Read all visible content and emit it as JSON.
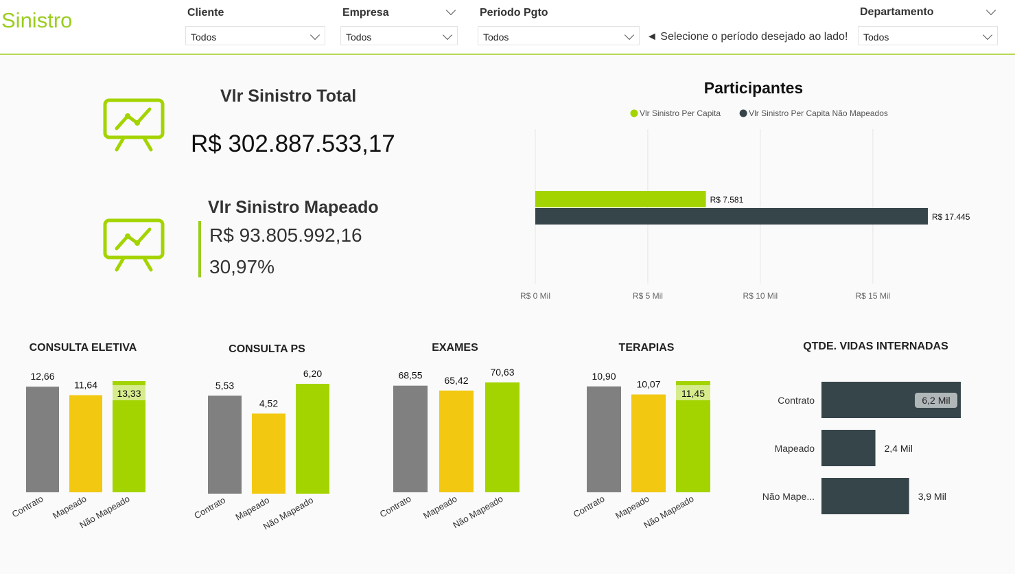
{
  "app": {
    "title": "Sinistro"
  },
  "filters": {
    "cliente": {
      "label": "Cliente",
      "value": "Todos"
    },
    "empresa": {
      "label": "Empresa",
      "value": "Todos"
    },
    "periodo": {
      "label": "Periodo Pgto",
      "value": "Todos"
    },
    "hint": "◄ Selecione o período desejado ao lado!",
    "departamento": {
      "label": "Departamento",
      "value": "Todos"
    }
  },
  "kpis": {
    "total": {
      "title": "Vlr Sinistro Total",
      "value": "R$ 302.887.533,17"
    },
    "mapeado": {
      "title": "Vlr Sinistro Mapeado",
      "value": "R$ 93.805.992,16",
      "percent": "30,97%"
    }
  },
  "icons": {
    "kpi_icon": "presentation-chart-icon"
  },
  "colors": {
    "green": "#a3d400",
    "dark": "#36454a",
    "gray": "#808080",
    "yellow": "#f2c811",
    "label_bg": "#b0b7b9"
  },
  "chart_data": [
    {
      "type": "bar",
      "orientation": "horizontal",
      "title": "Participantes",
      "categories": [
        ""
      ],
      "series": [
        {
          "name": "Vlr Sinistro Per Capita",
          "values": [
            7581
          ],
          "labels": [
            "R$ 7.581"
          ],
          "color": "#a3d400"
        },
        {
          "name": "Vlr Sinistro Per Capita Não Mapeados",
          "values": [
            17445
          ],
          "labels": [
            "R$ 17.445"
          ],
          "color": "#36454a"
        }
      ],
      "xlim": [
        0,
        17445
      ],
      "xticks": [
        0,
        5000,
        10000,
        15000
      ],
      "xtick_labels": [
        "R$ 0 Mil",
        "R$ 5 Mil",
        "R$ 10 Mil",
        "R$ 15 Mil"
      ],
      "grid": true,
      "legend": "top"
    },
    {
      "type": "bar",
      "title": "CONSULTA ELETIVA",
      "categories": [
        "Contrato",
        "Mapeado",
        "Não Mapeado"
      ],
      "values": [
        12.66,
        11.64,
        13.33
      ],
      "labels": [
        "12,66",
        "11,64",
        "13,33"
      ],
      "colors": [
        "#808080",
        "#f2c811",
        "#a3d400"
      ],
      "highlight_last": true
    },
    {
      "type": "bar",
      "title": "CONSULTA PS",
      "categories": [
        "Contrato",
        "Mapeado",
        "Não Mapeado"
      ],
      "values": [
        5.53,
        4.52,
        6.2
      ],
      "labels": [
        "5,53",
        "4,52",
        "6,20"
      ],
      "colors": [
        "#808080",
        "#f2c811",
        "#a3d400"
      ],
      "highlight_last": false
    },
    {
      "type": "bar",
      "title": "EXAMES",
      "categories": [
        "Contrato",
        "Mapeado",
        "Não Mapeado"
      ],
      "values": [
        68.55,
        65.42,
        70.63
      ],
      "labels": [
        "68,55",
        "65,42",
        "70,63"
      ],
      "colors": [
        "#808080",
        "#f2c811",
        "#a3d400"
      ],
      "highlight_last": false
    },
    {
      "type": "bar",
      "title": "TERAPIAS",
      "categories": [
        "Contrato",
        "Mapeado",
        "Não Mapeado"
      ],
      "values": [
        10.9,
        10.07,
        11.45
      ],
      "labels": [
        "10,90",
        "10,07",
        "11,45"
      ],
      "colors": [
        "#808080",
        "#f2c811",
        "#a3d400"
      ],
      "highlight_last": true
    },
    {
      "type": "bar",
      "orientation": "horizontal",
      "title": "QTDE. VIDAS INTERNADAS",
      "categories": [
        "Contrato",
        "Mapeado",
        "Não Mape..."
      ],
      "values": [
        6200,
        2400,
        3900
      ],
      "labels": [
        "6,2 Mil",
        "2,4 Mil",
        "3,9 Mil"
      ],
      "color": "#36454a"
    }
  ]
}
